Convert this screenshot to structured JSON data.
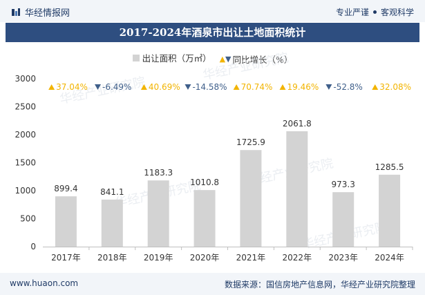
{
  "header": {
    "brand": "华经情报网",
    "slogan_left": "专业严谨",
    "slogan_right": "客观科学"
  },
  "title": "2017-2024年酒泉市出让土地面积统计",
  "legend": {
    "bar_label": "出让面积（万㎡）",
    "line_label": "同比增长（%）"
  },
  "watermark": "华经产业研究院",
  "footer": {
    "site": "www.huaon.com",
    "source": "数据来源：国信房地产信息网，华经产业研究院整理"
  },
  "colors": {
    "bar": "#d3d3d3",
    "up": "#f2b400",
    "down": "#3f5f8a",
    "title_bg": "#2e4e80"
  },
  "chart_data": {
    "type": "bar",
    "categories": [
      "2017年",
      "2018年",
      "2019年",
      "2020年",
      "2021年",
      "2022年",
      "2023年",
      "2024年"
    ],
    "series": [
      {
        "name": "出让面积（万㎡）",
        "values": [
          899.4,
          841.1,
          1183.3,
          1010.8,
          1725.9,
          2061.8,
          973.3,
          1285.5
        ]
      }
    ],
    "value_labels": [
      "899.4",
      "841.1",
      "1183.3",
      "1010.8",
      "1725.9",
      "2061.8",
      "973.3",
      "1285.5"
    ],
    "growth": [
      37.04,
      -6.49,
      40.69,
      -14.58,
      70.74,
      19.46,
      -52.8,
      32.08
    ],
    "growth_labels": [
      "37.04%",
      "-6.49%",
      "40.69%",
      "-14.58%",
      "70.74%",
      "19.46%",
      "-52.8%",
      "32.08%"
    ],
    "ylim": [
      0,
      3000
    ],
    "yticks": [
      0,
      500,
      1000,
      1500,
      2000,
      2500,
      3000
    ],
    "grid": false,
    "legend_position": "top-center"
  }
}
